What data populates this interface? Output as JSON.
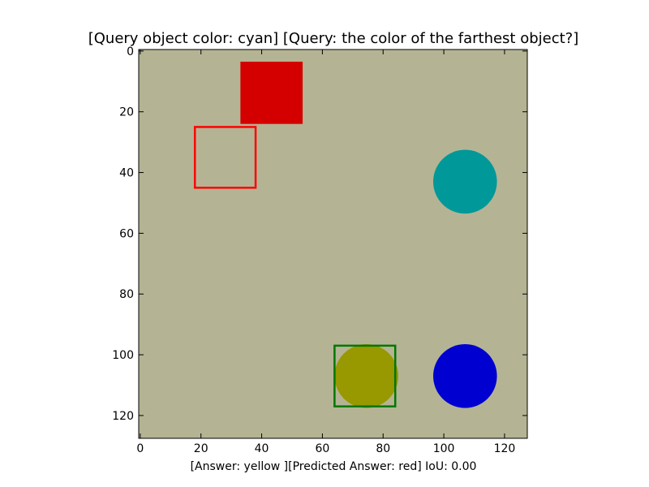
{
  "chart_data": {
    "type": "image",
    "title": "[Query object color: cyan] [Query: the color of the farthest object?]",
    "xlabel": "[Answer: yellow ][Predicted Answer: red] IoU: 0.00",
    "ylabel": "",
    "xlim": [
      -0.5,
      127.5
    ],
    "ylim": [
      127.5,
      -0.5
    ],
    "y_inverted": true,
    "x_ticks": [
      0,
      20,
      40,
      60,
      80,
      100,
      120
    ],
    "y_ticks": [
      0,
      20,
      40,
      60,
      80,
      100,
      120
    ],
    "background_color": "#b4b494",
    "objects": [
      {
        "name": "red-square",
        "shape": "square",
        "color": "#d40000",
        "x0": 33,
        "y0": 3.5,
        "x1": 53.5,
        "y1": 24
      },
      {
        "name": "cyan-circle",
        "shape": "circle",
        "color": "#009898",
        "cx": 107,
        "cy": 43,
        "r": 10.5
      },
      {
        "name": "yellow-circle",
        "shape": "circle",
        "color": "#989800",
        "cx": 74.5,
        "cy": 107,
        "r": 10.5
      },
      {
        "name": "blue-circle",
        "shape": "circle",
        "color": "#0000d0",
        "cx": 107,
        "cy": 107,
        "r": 10.5
      }
    ],
    "boxes": [
      {
        "name": "predicted-box",
        "color": "#ff0000",
        "x0": 18,
        "y0": 25,
        "x1": 38,
        "y1": 45
      },
      {
        "name": "ground-truth-box",
        "color": "#007700",
        "x0": 64,
        "y0": 97,
        "x1": 84,
        "y1": 117
      }
    ]
  }
}
